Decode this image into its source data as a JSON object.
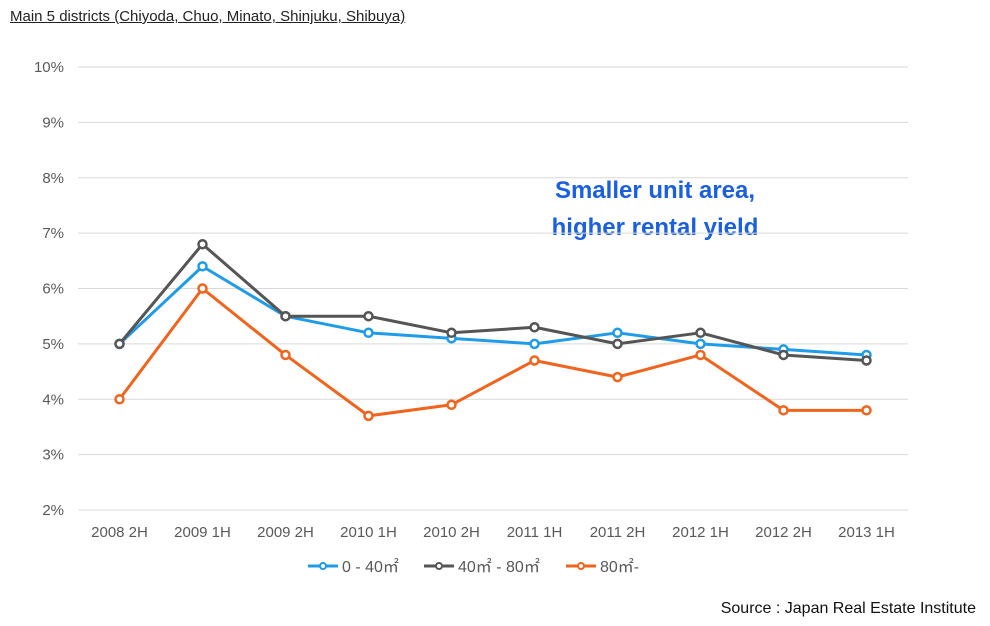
{
  "chart_data": {
    "type": "line",
    "title": "Main 5 districts (Chiyoda, Chuo, Minato, Shinjuku, Shibuya)",
    "xlabel": "",
    "ylabel": "",
    "categories": [
      "2008 2H",
      "2009 1H",
      "2009 2H",
      "2010 1H",
      "2010 2H",
      "2011 1H",
      "2011 2H",
      "2012 1H",
      "2012 2H",
      "2013 1H"
    ],
    "ylim": [
      2,
      10
    ],
    "yticks": [
      2,
      3,
      4,
      5,
      6,
      7,
      8,
      9,
      10
    ],
    "ytick_labels": [
      "2%",
      "3%",
      "4%",
      "5%",
      "6%",
      "7%",
      "8%",
      "9%",
      "10%"
    ],
    "grid": true,
    "legend_position": "bottom",
    "series": [
      {
        "name": "0 - 40㎡",
        "color": "#1f9be8",
        "values": [
          5.0,
          6.4,
          5.5,
          5.2,
          5.1,
          5.0,
          5.2,
          5.0,
          4.9,
          4.8
        ]
      },
      {
        "name": "40㎡ - 80㎡",
        "color": "#555555",
        "values": [
          5.0,
          6.8,
          5.5,
          5.5,
          5.2,
          5.3,
          5.0,
          5.2,
          4.8,
          4.7
        ]
      },
      {
        "name": "80㎡-",
        "color": "#f0641e",
        "values": [
          4.0,
          6.0,
          4.8,
          3.7,
          3.9,
          4.7,
          4.4,
          4.8,
          3.8,
          3.8
        ]
      }
    ],
    "annotation": [
      "Smaller unit area,",
      "higher rental yield"
    ],
    "source": "Source : Japan Real Estate Institute"
  }
}
